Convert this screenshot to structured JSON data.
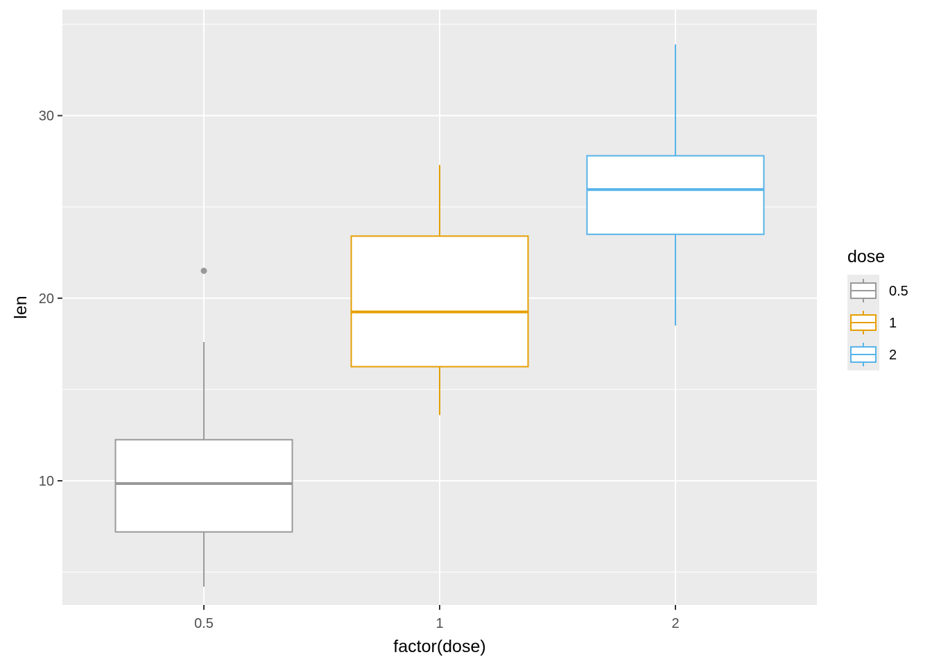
{
  "chart_data": {
    "type": "boxplot",
    "title": "",
    "xlabel": "factor(dose)",
    "ylabel": "len",
    "ylim": [
      3.2,
      35.8
    ],
    "y_ticks": [
      10,
      20,
      30
    ],
    "y_tick_labels": [
      "10",
      "20",
      "30"
    ],
    "categories": [
      "0.5",
      "1",
      "2"
    ],
    "grid": true,
    "legend": {
      "title": "dose",
      "position": "right",
      "entries": [
        "0.5",
        "1",
        "2"
      ]
    },
    "series": [
      {
        "category": "0.5",
        "color": "#999999",
        "whisker_low": 4.2,
        "q1": 7.2,
        "median": 9.85,
        "q3": 12.25,
        "whisker_high": 17.6,
        "outliers": [
          21.5
        ]
      },
      {
        "category": "1",
        "color": "#E69F00",
        "whisker_low": 13.6,
        "q1": 16.25,
        "median": 19.25,
        "q3": 23.4,
        "whisker_high": 27.3,
        "outliers": []
      },
      {
        "category": "2",
        "color": "#56B4E9",
        "whisker_low": 18.5,
        "q1": 23.5,
        "median": 25.95,
        "q3": 27.8,
        "whisker_high": 33.9,
        "outliers": []
      }
    ]
  }
}
